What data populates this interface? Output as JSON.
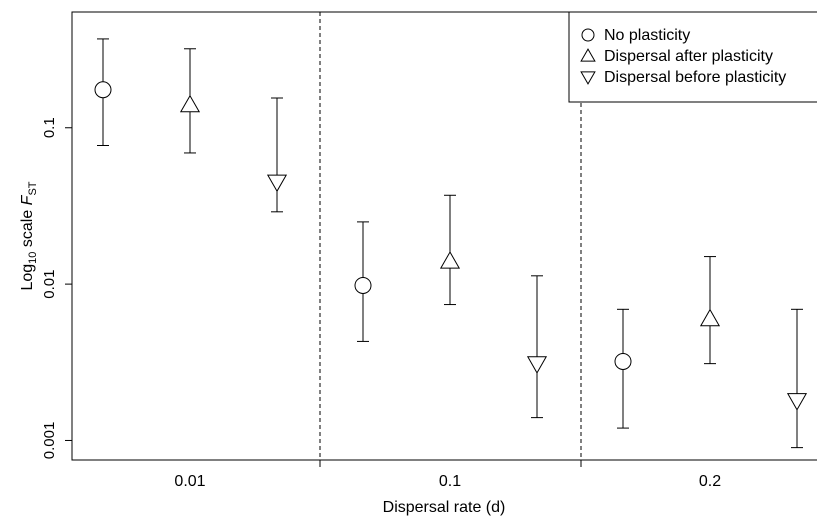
{
  "chart_data": {
    "type": "scatter",
    "xlabel": "Dispersal rate (d)",
    "ylabel": {
      "prefix": "Log",
      "sub": "10",
      "mid": " scale ",
      "var": "F",
      "var_sub": "ST"
    },
    "y_scale": "log10",
    "ylim": [
      0.00075,
      0.55
    ],
    "yticks": [
      {
        "value": 0.1,
        "label": "0.1"
      },
      {
        "value": 0.01,
        "label": "0.01"
      },
      {
        "value": 0.001,
        "label": "0.001"
      }
    ],
    "categories": [
      "0.01",
      "0.1",
      "0.2"
    ],
    "grid": false,
    "legend_position": "top-right",
    "series": [
      {
        "name": "No plasticity",
        "marker": "circle",
        "values": [
          0.175,
          0.0098,
          0.0032
        ],
        "lower": [
          0.077,
          0.0043,
          0.0012
        ],
        "upper": [
          0.37,
          0.025,
          0.0069
        ]
      },
      {
        "name": "Dispersal after plasticity",
        "marker": "triangle-up",
        "values": [
          0.14,
          0.014,
          0.006
        ],
        "lower": [
          0.069,
          0.0074,
          0.0031
        ],
        "upper": [
          0.32,
          0.037,
          0.015
        ]
      },
      {
        "name": "Dispersal before plasticity",
        "marker": "triangle-down",
        "values": [
          0.045,
          0.0031,
          0.0018
        ],
        "lower": [
          0.029,
          0.0014,
          0.0009
        ],
        "upper": [
          0.155,
          0.0113,
          0.0069
        ]
      }
    ]
  }
}
